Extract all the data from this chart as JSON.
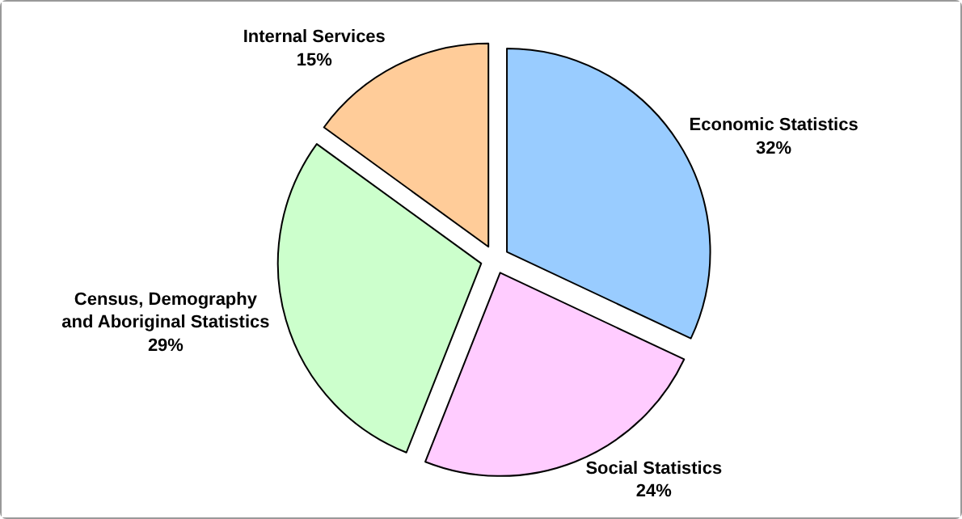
{
  "chart_data": {
    "type": "pie",
    "categories": [
      "Economic Statistics",
      "Social Statistics",
      "Census, Demography and Aboriginal Statistics",
      "Internal Services"
    ],
    "values": [
      32,
      24,
      29,
      15
    ],
    "value_labels": [
      "32%",
      "24%",
      "29%",
      "15%"
    ],
    "colors": [
      "#99ccff",
      "#ffccff",
      "#ccffcc",
      "#ffcc99"
    ],
    "legend": false
  }
}
